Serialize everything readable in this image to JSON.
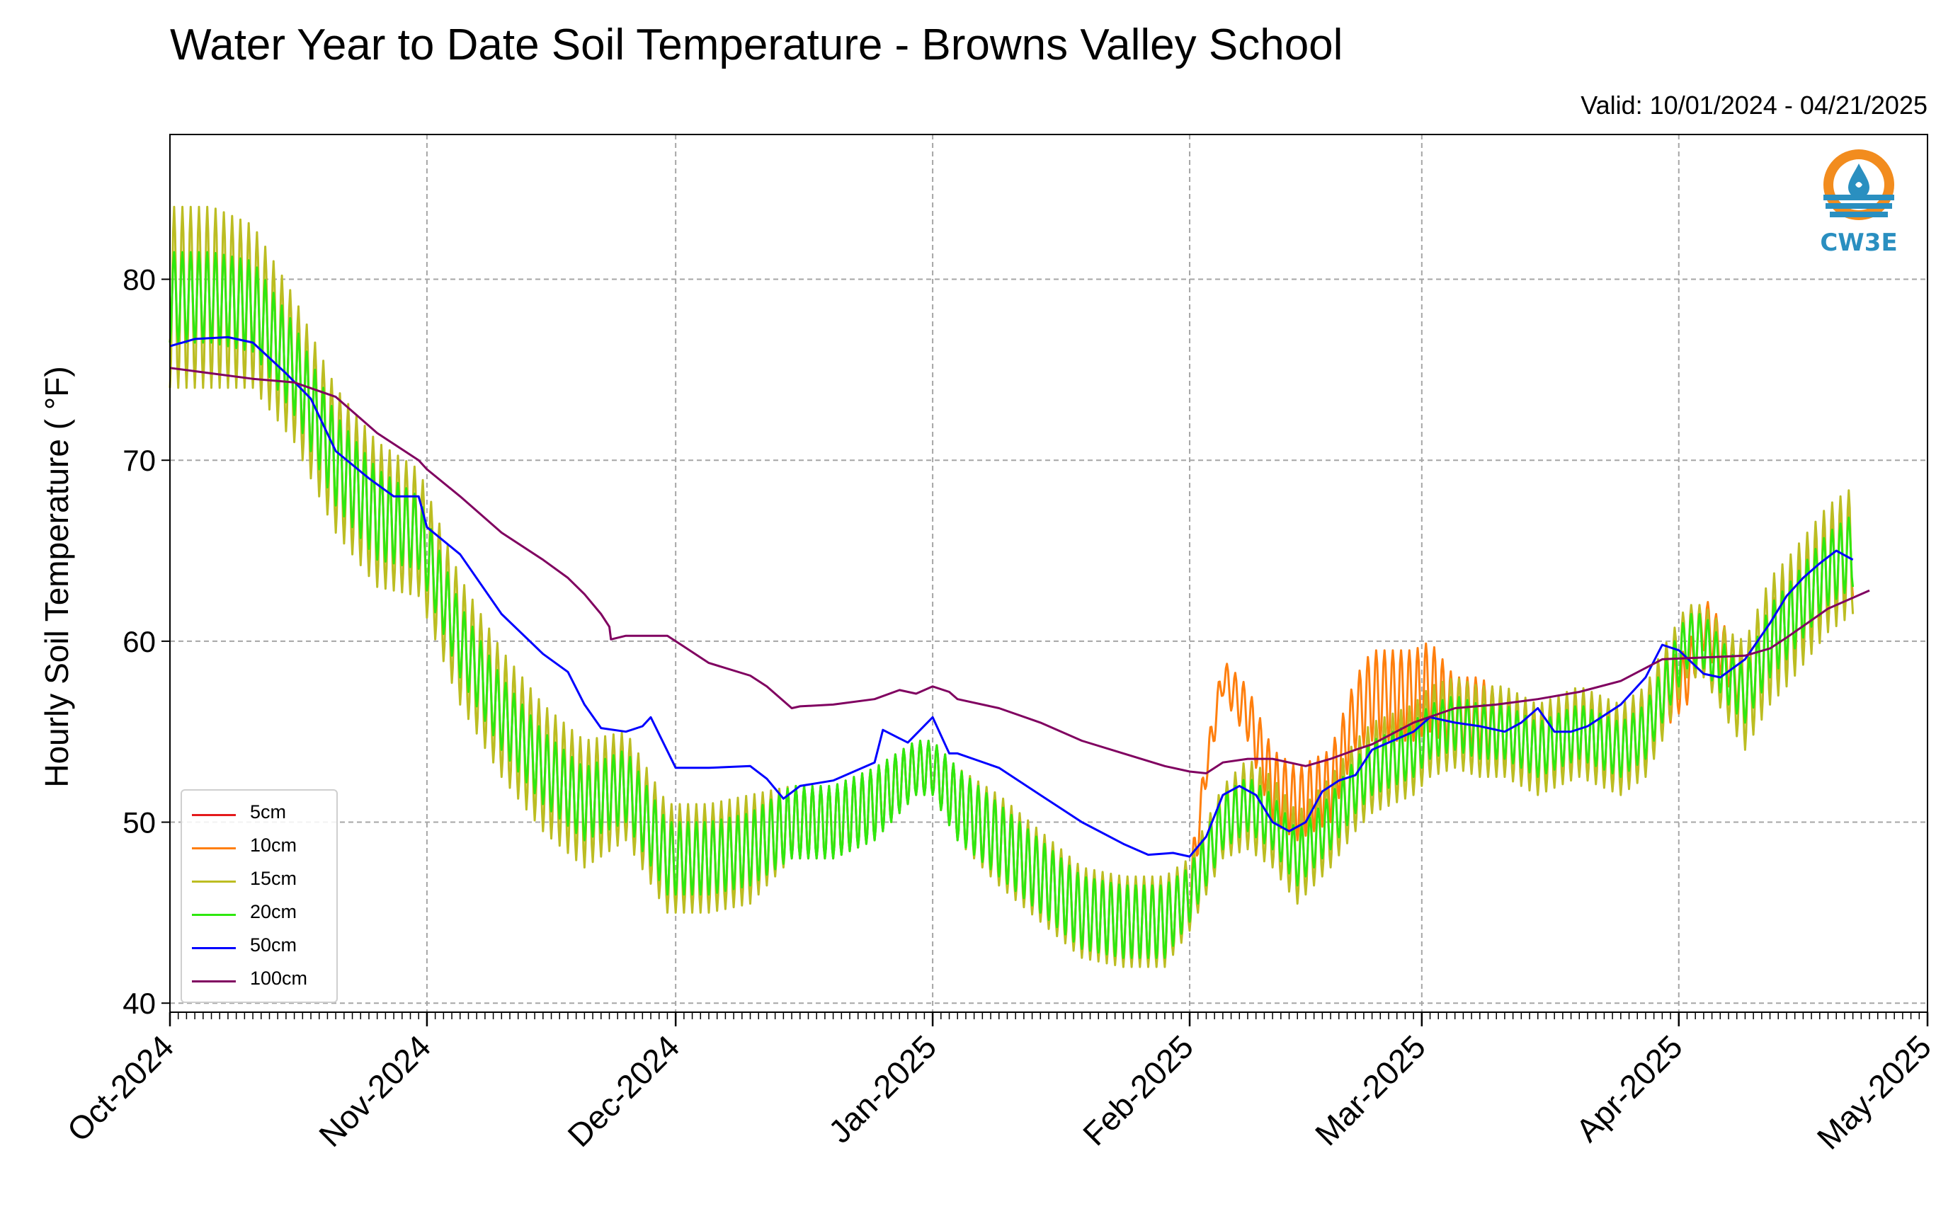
{
  "header": {
    "title": "Water Year to Date Soil Temperature - Browns Valley School",
    "valid": "Valid: 10/01/2024 - 04/21/2025"
  },
  "logo": {
    "icon": "cw3e-water-drop-logo",
    "text": "CW3E",
    "colors": [
      "#f28c1e",
      "#2a8fc0"
    ]
  },
  "chart_data": {
    "type": "line",
    "title": "Water Year to Date Soil Temperature - Browns Valley School",
    "ylabel": "Hourly Soil Temperature ( °F)",
    "xlabel": "",
    "ylim": [
      39.5,
      88
    ],
    "yticks": [
      40,
      50,
      60,
      70,
      80
    ],
    "xlim": [
      0,
      212
    ],
    "xticks": [
      {
        "label": "Oct-2024",
        "day": 0
      },
      {
        "label": "Nov-2024",
        "day": 31
      },
      {
        "label": "Dec-2024",
        "day": 61
      },
      {
        "label": "Jan-2025",
        "day": 92
      },
      {
        "label": "Feb-2025",
        "day": 123
      },
      {
        "label": "Mar-2025",
        "day": 151
      },
      {
        "label": "Apr-2025",
        "day": 182
      },
      {
        "label": "May-2025",
        "day": 212
      }
    ],
    "x_unit": "days since 2024-10-01",
    "grid": true,
    "legend_position": "lower-left",
    "series": [
      {
        "name": "5cm",
        "color": "#e41a1c",
        "amp": [],
        "x": [],
        "values": []
      },
      {
        "name": "10cm",
        "color": "#ff7f0e",
        "x": [
          0,
          5,
          10,
          15,
          20,
          25,
          30,
          35,
          40,
          45,
          50,
          55,
          60,
          65,
          70,
          75,
          80,
          85,
          90,
          92,
          95,
          100,
          105,
          110,
          115,
          120,
          123,
          125,
          127,
          130,
          133,
          136,
          140,
          143,
          145,
          150,
          152,
          155,
          158,
          161,
          165,
          170,
          175,
          178,
          180,
          183,
          185,
          188,
          190,
          193,
          195,
          200,
          203
        ],
        "values": [
          79,
          79,
          78.5,
          75,
          70,
          67,
          66,
          60,
          56,
          53,
          51,
          52,
          48,
          48,
          48.5,
          50,
          50,
          51,
          53,
          53,
          51,
          49,
          47,
          45,
          44.5,
          44.5,
          46,
          53,
          58,
          56,
          52,
          51,
          52,
          56,
          57,
          57,
          57.5,
          56,
          56,
          55,
          54,
          55,
          54,
          55,
          57,
          58,
          61,
          59,
          57,
          60,
          61,
          64,
          65
        ],
        "amp": [
          2.5,
          2.5,
          2.5,
          2.5,
          2.5,
          2.5,
          2,
          2,
          2,
          2,
          2,
          2,
          2,
          2,
          2,
          2,
          2,
          2,
          1.5,
          1.5,
          2,
          2,
          2,
          2,
          2,
          2,
          1.5,
          1,
          1,
          1.5,
          2,
          2,
          2,
          2,
          2.5,
          2.5,
          2.5,
          2,
          2,
          2,
          2,
          2,
          2,
          2,
          2,
          1.5,
          1.5,
          1.5,
          1.5,
          2,
          2.5,
          2.5,
          2.5
        ]
      },
      {
        "name": "15cm",
        "color": "#bcbd22",
        "x": [
          0,
          5,
          10,
          15,
          20,
          25,
          30,
          35,
          40,
          45,
          50,
          55,
          60,
          65,
          70,
          75,
          80,
          85,
          90,
          92,
          95,
          100,
          105,
          110,
          115,
          120,
          123,
          125,
          127,
          130,
          133,
          136,
          140,
          143,
          145,
          150,
          152,
          155,
          158,
          161,
          165,
          170,
          175,
          178,
          180,
          183,
          185,
          188,
          190,
          193,
          195,
          200,
          203
        ],
        "values": [
          79,
          79,
          78.5,
          75,
          70,
          67,
          66,
          60,
          56,
          53,
          51,
          52,
          48,
          48,
          48.5,
          50,
          50,
          51,
          53,
          53,
          51,
          49,
          47,
          45,
          44.5,
          44.5,
          46,
          48,
          50,
          51,
          50,
          48,
          50,
          52,
          53,
          54,
          55,
          55.5,
          55,
          55,
          54,
          55,
          54,
          55,
          57,
          60,
          60,
          58,
          57,
          60,
          61,
          64,
          65
        ],
        "amp": [
          5,
          5,
          4.5,
          4,
          4,
          4,
          3.5,
          3.5,
          3.5,
          3.5,
          3.5,
          3,
          3,
          3,
          3,
          2,
          2,
          2,
          1.5,
          1.5,
          2,
          2.5,
          2.5,
          2.5,
          2.5,
          2.5,
          2,
          2,
          2,
          2.5,
          2.5,
          2.5,
          2.5,
          2.5,
          2.5,
          2.5,
          2.5,
          2.5,
          2.5,
          2.5,
          2.5,
          2.5,
          2.5,
          2.5,
          2.5,
          2,
          2,
          2.5,
          3,
          3.5,
          3.5,
          3.5,
          3.5
        ]
      },
      {
        "name": "20cm",
        "color": "#2ee80f",
        "x": [
          0,
          5,
          10,
          15,
          20,
          25,
          30,
          35,
          40,
          45,
          50,
          55,
          60,
          65,
          70,
          75,
          80,
          85,
          90,
          92,
          95,
          100,
          105,
          110,
          115,
          120,
          123,
          125,
          127,
          130,
          133,
          136,
          140,
          143,
          145,
          150,
          152,
          155,
          158,
          161,
          165,
          170,
          175,
          178,
          180,
          183,
          185,
          188,
          190,
          193,
          195,
          200,
          203
        ],
        "values": [
          79,
          79,
          78.5,
          75,
          70,
          67,
          66,
          60,
          56,
          53,
          51,
          52,
          48,
          48,
          48.5,
          50,
          50,
          51,
          53,
          53,
          51,
          49,
          47,
          45,
          44.5,
          44.5,
          46,
          48,
          50,
          51,
          50,
          48,
          50,
          52,
          53,
          54,
          55,
          55.5,
          55,
          55,
          54,
          55,
          54,
          55,
          57,
          60,
          60,
          58,
          57,
          60,
          61,
          64,
          65
        ],
        "amp": [
          2.5,
          2.5,
          2.5,
          2.5,
          2.5,
          2.5,
          2,
          2,
          2,
          2,
          2,
          2,
          2,
          2,
          2,
          2,
          2,
          2,
          1.5,
          1.5,
          2,
          2,
          2,
          2,
          2,
          2,
          1.5,
          1.5,
          1.5,
          1.5,
          1.5,
          1.5,
          1.5,
          1.5,
          1.5,
          1.5,
          1.5,
          1.5,
          1.5,
          1.5,
          1.5,
          1.5,
          1.5,
          1.5,
          1.5,
          1.5,
          1.5,
          1.5,
          1.5,
          2,
          2,
          2,
          2
        ]
      },
      {
        "name": "50cm",
        "color": "#0000ff",
        "x": [
          0,
          3,
          7,
          10,
          14,
          17,
          20,
          24,
          27,
          30,
          31,
          35,
          40,
          45,
          48,
          50,
          52,
          55,
          57,
          58,
          61,
          65,
          70,
          72,
          74,
          76,
          80,
          85,
          86,
          89,
          92,
          94,
          95,
          100,
          105,
          110,
          115,
          118,
          121,
          123,
          125,
          127,
          129,
          131,
          133,
          135,
          137,
          139,
          141,
          143,
          145,
          150,
          152,
          155,
          158,
          161,
          163,
          165,
          167,
          169,
          171,
          175,
          178,
          180,
          182,
          185,
          187,
          190,
          193,
          195,
          197,
          199,
          201,
          203
        ],
        "values": [
          76.3,
          76.7,
          76.8,
          76.5,
          74.8,
          73.4,
          70.5,
          69,
          68,
          68,
          66.3,
          64.8,
          61.5,
          59.3,
          58.3,
          56.5,
          55.2,
          55,
          55.3,
          55.8,
          53,
          53,
          53.1,
          52.4,
          51.3,
          52,
          52.3,
          53.3,
          55.1,
          54.4,
          55.8,
          53.8,
          53.8,
          53,
          51.5,
          50,
          48.8,
          48.2,
          48.3,
          48.1,
          49.2,
          51.5,
          52,
          51.5,
          50,
          49.5,
          50,
          51.7,
          52.3,
          52.6,
          54,
          55,
          55.8,
          55.5,
          55.3,
          55,
          55.5,
          56.3,
          55,
          55,
          55.3,
          56.5,
          58,
          59.8,
          59.5,
          58.2,
          58,
          59,
          61,
          62.5,
          63.5,
          64.3,
          65,
          64.5
        ]
      },
      {
        "name": "100cm",
        "color": "#800060",
        "x": [
          0,
          5,
          10,
          15,
          20,
          25,
          30,
          31,
          35,
          40,
          45,
          48,
          50,
          52,
          53,
          53.2,
          55,
          60,
          62,
          65,
          70,
          72,
          74,
          75,
          76,
          80,
          85,
          88,
          90,
          92,
          94,
          95,
          100,
          105,
          110,
          115,
          120,
          123,
          125,
          127,
          130,
          133,
          137,
          140,
          143,
          145,
          150,
          155,
          160,
          165,
          170,
          175,
          180,
          185,
          190,
          193,
          195,
          200,
          205
        ],
        "values": [
          75.1,
          74.8,
          74.5,
          74.3,
          73.5,
          71.5,
          70,
          69.5,
          68,
          66,
          64.5,
          63.5,
          62.6,
          61.5,
          60.8,
          60.1,
          60.3,
          60.3,
          59.7,
          58.8,
          58.1,
          57.5,
          56.7,
          56.3,
          56.4,
          56.5,
          56.8,
          57.3,
          57.1,
          57.5,
          57.2,
          56.8,
          56.3,
          55.5,
          54.5,
          53.8,
          53.1,
          52.8,
          52.7,
          53.3,
          53.5,
          53.5,
          53.1,
          53.5,
          54,
          54.3,
          55.5,
          56.3,
          56.5,
          56.8,
          57.2,
          57.8,
          59,
          59.1,
          59.2,
          59.6,
          60.2,
          61.8,
          62.8
        ]
      }
    ]
  }
}
